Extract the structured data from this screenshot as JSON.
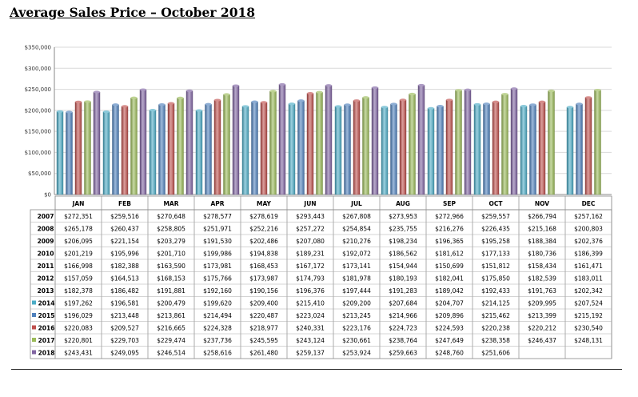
{
  "title": "Average Sales Price – October 2018",
  "chart_data": {
    "type": "bar",
    "title": "Average Sales Price – October 2018",
    "categories": [
      "JAN",
      "FEB",
      "MAR",
      "APR",
      "MAY",
      "JUN",
      "JUL",
      "AUG",
      "SEP",
      "OCT",
      "NOV",
      "DEC"
    ],
    "ylim": [
      0,
      350000
    ],
    "yticks": [
      "$0",
      "$50,000",
      "$100,000",
      "$150,000",
      "$200,000",
      "$250,000",
      "$300,000",
      "$350,000"
    ],
    "grid": true,
    "plotted_years": [
      "2014",
      "2015",
      "2016",
      "2017",
      "2018"
    ],
    "colors": {
      "2014": "#4bacc6",
      "2015": "#4f81bd",
      "2016": "#c0504d",
      "2017": "#9bbb59",
      "2018": "#8064a2"
    },
    "series": [
      {
        "name": "2007",
        "values": [
          "$272,351",
          "$259,516",
          "$270,648",
          "$278,577",
          "$278,619",
          "$293,443",
          "$267,808",
          "$273,953",
          "$272,966",
          "$259,557",
          "$266,794",
          "$257,162"
        ]
      },
      {
        "name": "2008",
        "values": [
          "$265,178",
          "$260,437",
          "$258,805",
          "$251,971",
          "$252,216",
          "$257,272",
          "$254,854",
          "$235,755",
          "$216,276",
          "$226,435",
          "$215,168",
          "$200,803"
        ]
      },
      {
        "name": "2009",
        "values": [
          "$206,095",
          "$221,154",
          "$203,279",
          "$191,530",
          "$202,486",
          "$207,080",
          "$210,276",
          "$198,234",
          "$196,365",
          "$195,258",
          "$188,384",
          "$202,376"
        ]
      },
      {
        "name": "2010",
        "values": [
          "$201,219",
          "$195,996",
          "$201,710",
          "$199,986",
          "$194,838",
          "$189,231",
          "$192,072",
          "$186,562",
          "$181,612",
          "$177,133",
          "$180,736",
          "$186,399"
        ]
      },
      {
        "name": "2011",
        "values": [
          "$166,998",
          "$182,388",
          "$163,590",
          "$173,981",
          "$168,453",
          "$167,172",
          "$173,141",
          "$154,944",
          "$150,699",
          "$151,812",
          "$158,434",
          "$161,471"
        ]
      },
      {
        "name": "2012",
        "values": [
          "$157,059",
          "$164,513",
          "$168,153",
          "$175,766",
          "$173,987",
          "$174,793",
          "$181,978",
          "$180,193",
          "$182,041",
          "$175,850",
          "$182,539",
          "$183,011"
        ]
      },
      {
        "name": "2013",
        "values": [
          "$182,378",
          "$186,482",
          "$191,881",
          "$192,160",
          "$190,156",
          "$196,376",
          "$197,444",
          "$191,283",
          "$189,042",
          "$192,433",
          "$191,763",
          "$202,342"
        ]
      },
      {
        "name": "2014",
        "values": [
          "$197,262",
          "$196,581",
          "$200,479",
          "$199,620",
          "$209,400",
          "$215,410",
          "$209,200",
          "$207,684",
          "$204,707",
          "$214,125",
          "$209,995",
          "$207,524"
        ]
      },
      {
        "name": "2015",
        "values": [
          "$196,029",
          "$213,448",
          "$213,861",
          "$214,494",
          "$220,487",
          "$223,024",
          "$213,245",
          "$214,966",
          "$209,896",
          "$215,462",
          "$213,399",
          "$215,192"
        ]
      },
      {
        "name": "2016",
        "values": [
          "$220,083",
          "$209,527",
          "$216,665",
          "$224,328",
          "$218,977",
          "$240,331",
          "$223,176",
          "$224,723",
          "$224,593",
          "$220,238",
          "$220,212",
          "$230,540"
        ]
      },
      {
        "name": "2017",
        "values": [
          "$220,801",
          "$229,703",
          "$229,474",
          "$237,736",
          "$245,595",
          "$243,124",
          "$230,661",
          "$238,764",
          "$247,649",
          "$238,358",
          "$246,437",
          "$248,131"
        ]
      },
      {
        "name": "2018",
        "values": [
          "$243,431",
          "$249,095",
          "$246,514",
          "$258,616",
          "$261,480",
          "$259,137",
          "$253,924",
          "$259,663",
          "$248,760",
          "$251,606",
          "",
          ""
        ]
      }
    ]
  }
}
